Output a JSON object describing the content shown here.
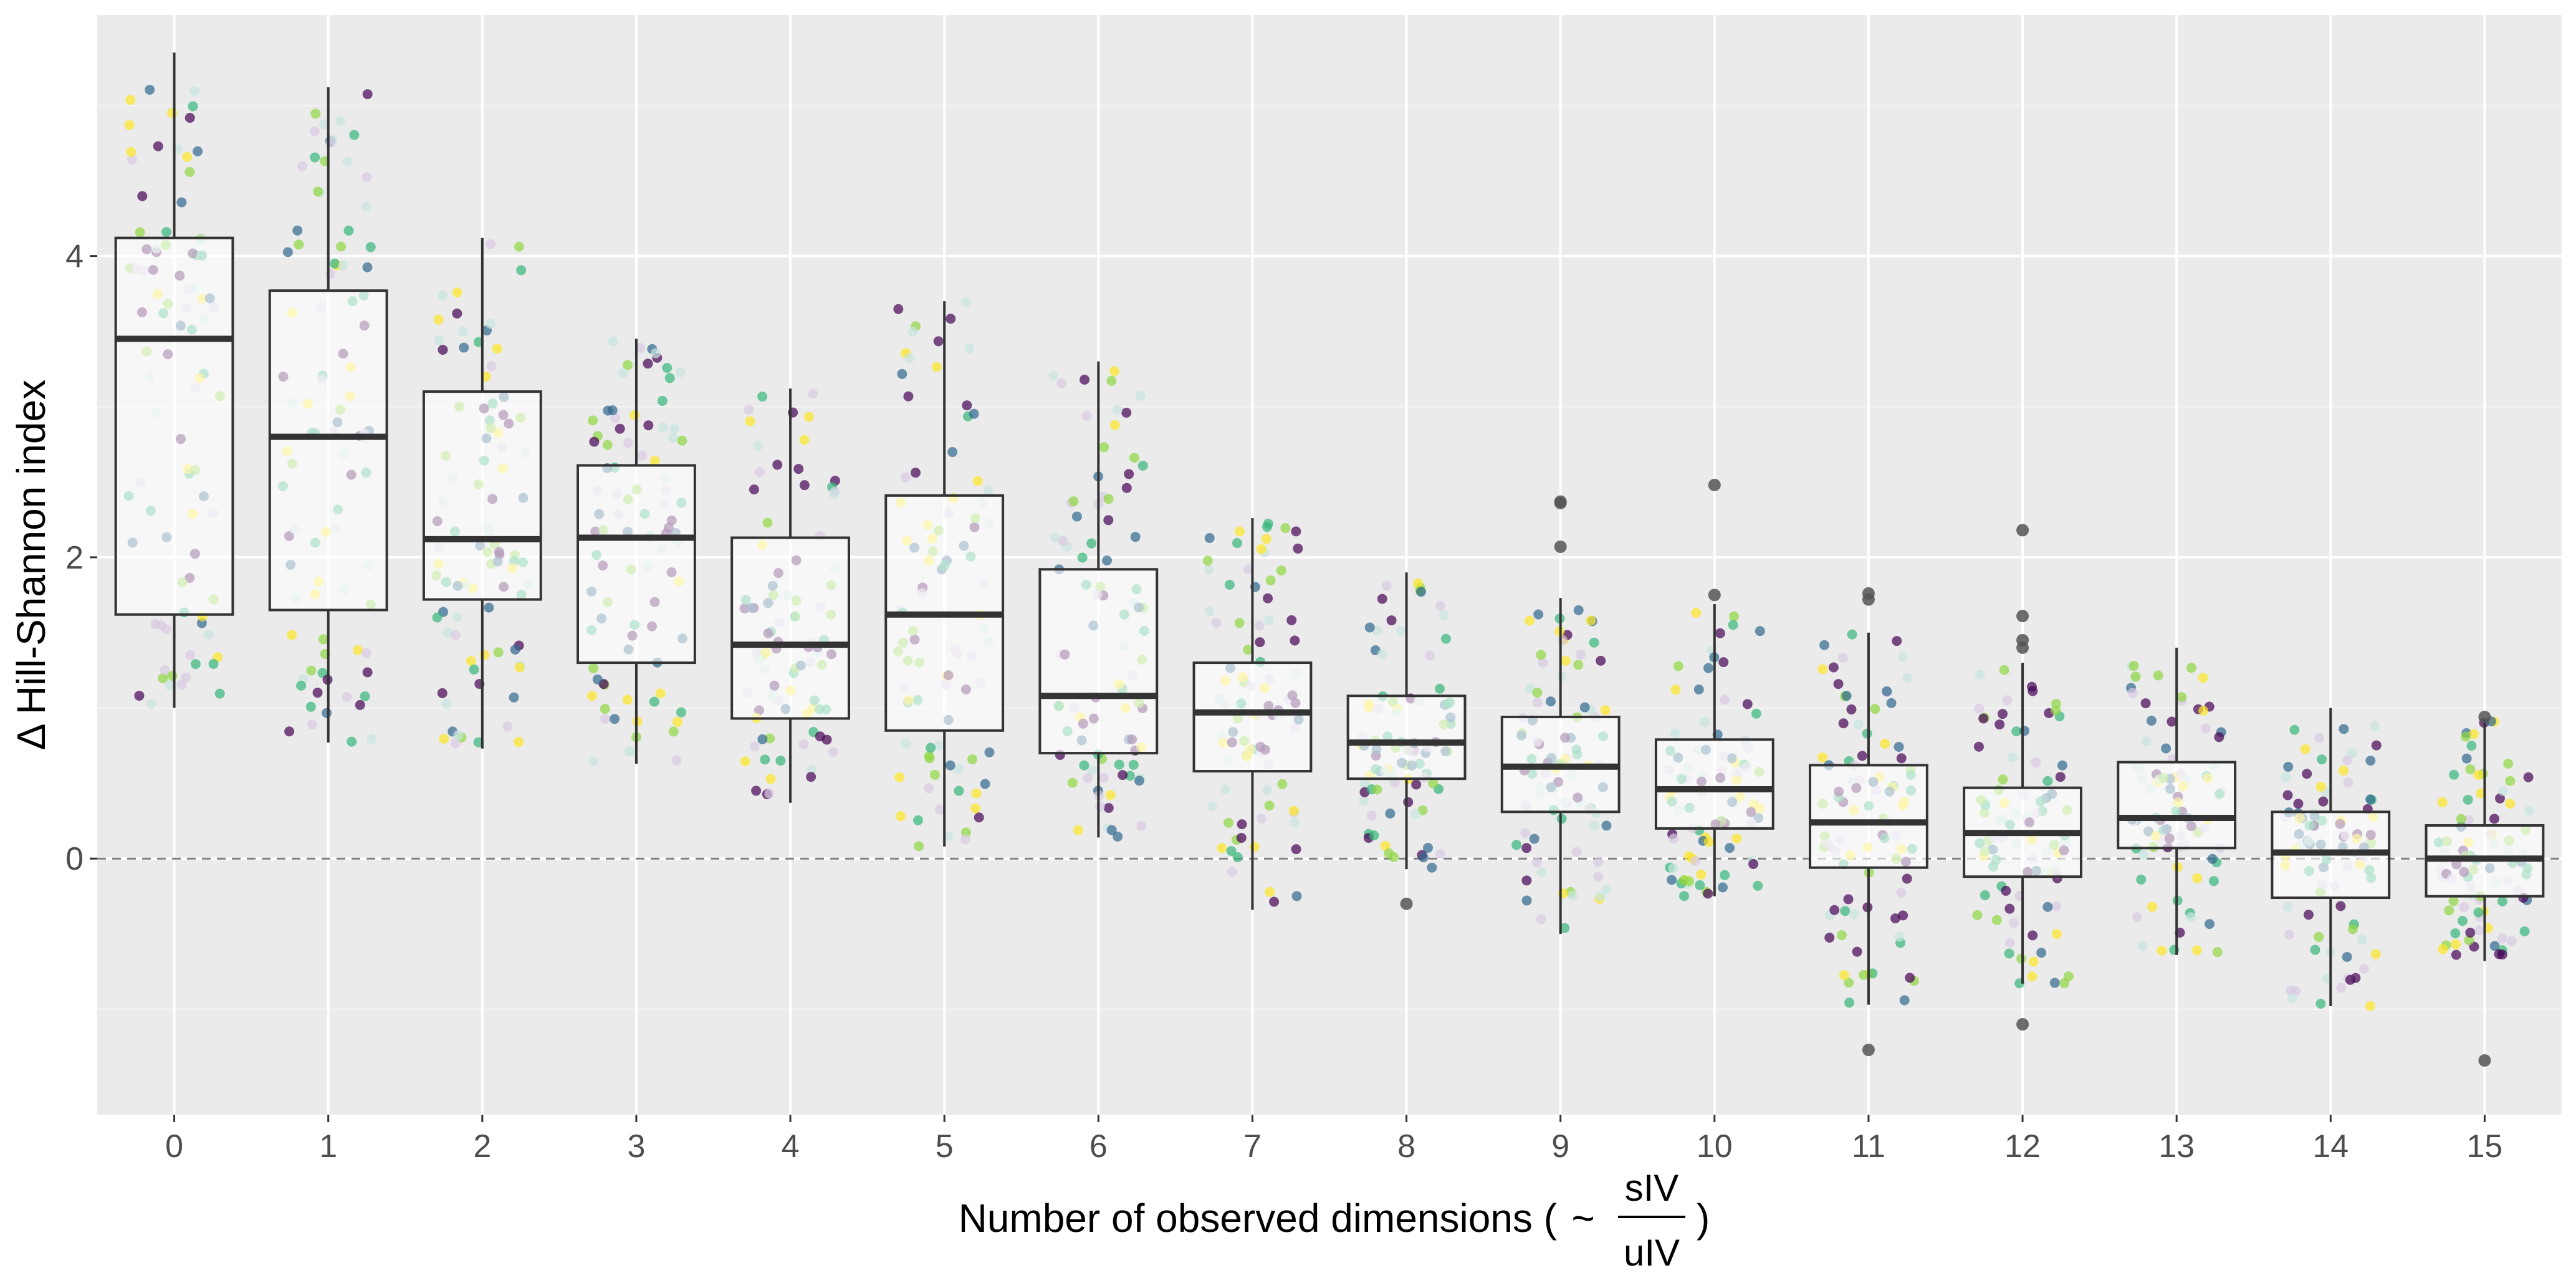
{
  "chart_data": {
    "type": "box",
    "xlabel_prefix": "Number of observed dimensions (",
    "xlabel_tilde": "~",
    "xlabel_numerator": "sIV",
    "xlabel_denominator": "uIV",
    "xlabel_suffix": ")",
    "ylabel": "Δ Hill-Shannon index",
    "x_ticks": [
      "0",
      "1",
      "2",
      "3",
      "4",
      "5",
      "6",
      "7",
      "8",
      "9",
      "10",
      "11",
      "12",
      "13",
      "14",
      "15"
    ],
    "y_ticks": [
      "0",
      "2",
      "4"
    ],
    "ylim": [
      -1.7,
      5.6
    ],
    "reference_line": 0,
    "grid": true,
    "jitter_colors": [
      "#440154",
      "#31688e",
      "#35b779",
      "#90d743",
      "#fde725",
      "#c8e6e0",
      "#d9cbe3"
    ],
    "boxes": [
      {
        "x": "0",
        "whisker_low": 1.0,
        "q1": 1.62,
        "median": 3.45,
        "q3": 4.12,
        "whisker_high": 5.35,
        "outliers": []
      },
      {
        "x": "1",
        "whisker_low": 0.77,
        "q1": 1.65,
        "median": 2.8,
        "q3": 3.77,
        "whisker_high": 5.12,
        "outliers": []
      },
      {
        "x": "2",
        "whisker_low": 0.73,
        "q1": 1.72,
        "median": 2.12,
        "q3": 3.1,
        "whisker_high": 4.12,
        "outliers": []
      },
      {
        "x": "3",
        "whisker_low": 0.63,
        "q1": 1.3,
        "median": 2.13,
        "q3": 2.61,
        "whisker_high": 3.45,
        "outliers": []
      },
      {
        "x": "4",
        "whisker_low": 0.37,
        "q1": 0.93,
        "median": 1.42,
        "q3": 2.13,
        "whisker_high": 3.12,
        "outliers": []
      },
      {
        "x": "5",
        "whisker_low": 0.08,
        "q1": 0.85,
        "median": 1.62,
        "q3": 2.41,
        "whisker_high": 3.7,
        "outliers": []
      },
      {
        "x": "6",
        "whisker_low": 0.14,
        "q1": 0.7,
        "median": 1.08,
        "q3": 1.92,
        "whisker_high": 3.3,
        "outliers": []
      },
      {
        "x": "7",
        "whisker_low": -0.34,
        "q1": 0.58,
        "median": 0.97,
        "q3": 1.3,
        "whisker_high": 2.26,
        "outliers": []
      },
      {
        "x": "8",
        "whisker_low": -0.07,
        "q1": 0.53,
        "median": 0.77,
        "q3": 1.08,
        "whisker_high": 1.9,
        "outliers": [
          -0.3
        ]
      },
      {
        "x": "9",
        "whisker_low": -0.5,
        "q1": 0.31,
        "median": 0.61,
        "q3": 0.94,
        "whisker_high": 1.73,
        "outliers": [
          2.07,
          2.36,
          2.37
        ]
      },
      {
        "x": "10",
        "whisker_low": -0.25,
        "q1": 0.2,
        "median": 0.46,
        "q3": 0.79,
        "whisker_high": 1.69,
        "outliers": [
          1.75,
          2.48
        ]
      },
      {
        "x": "11",
        "whisker_low": -0.97,
        "q1": -0.06,
        "median": 0.24,
        "q3": 0.62,
        "whisker_high": 1.5,
        "outliers": [
          -1.27,
          1.72,
          1.76
        ]
      },
      {
        "x": "12",
        "whisker_low": -0.83,
        "q1": -0.12,
        "median": 0.17,
        "q3": 0.47,
        "whisker_high": 1.3,
        "outliers": [
          -1.1,
          1.4,
          1.45,
          1.61,
          2.18
        ]
      },
      {
        "x": "13",
        "whisker_low": -0.64,
        "q1": 0.07,
        "median": 0.27,
        "q3": 0.64,
        "whisker_high": 1.4,
        "outliers": []
      },
      {
        "x": "14",
        "whisker_low": -0.98,
        "q1": -0.26,
        "median": 0.04,
        "q3": 0.31,
        "whisker_high": 1.0,
        "outliers": []
      },
      {
        "x": "15",
        "whisker_low": -0.68,
        "q1": -0.25,
        "median": 0.0,
        "q3": 0.22,
        "whisker_high": 0.92,
        "outliers": [
          -1.34,
          0.94
        ]
      }
    ]
  }
}
